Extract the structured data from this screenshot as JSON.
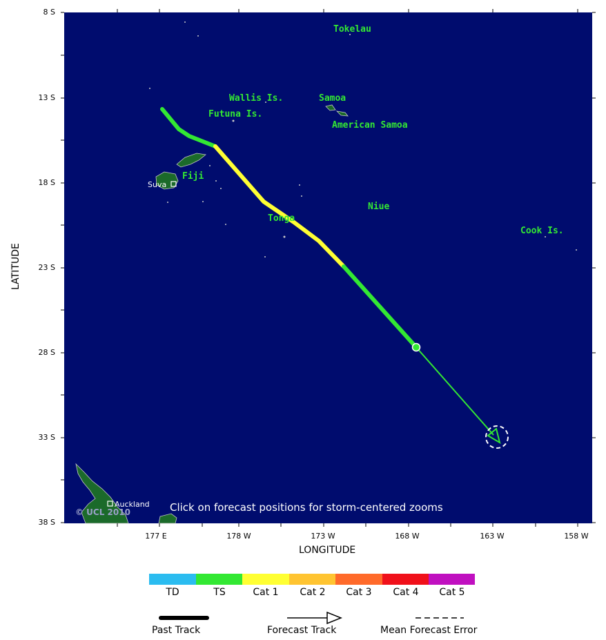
{
  "axes": {
    "y_title": "LATITUDE",
    "x_title": "LONGITUDE",
    "y_ticks": [
      "8 S",
      "13 S",
      "18 S",
      "23 S",
      "28 S",
      "33 S",
      "38 S"
    ],
    "x_ticks": [
      "177 E",
      "178 W",
      "173 W",
      "168 W",
      "163 W",
      "158 W"
    ]
  },
  "map": {
    "background": "#000c6e",
    "land_color": "#1b6a2a",
    "place_names": [
      "Tokelau",
      "Wallis Is.",
      "Futuna Is.",
      "Samoa",
      "American Samoa",
      "Fiji",
      "Niue",
      "Tonga",
      "Cook Is."
    ],
    "cities": [
      "Suva",
      "Auckland"
    ],
    "click_hint": "Click on forecast positions for storm-centered zooms",
    "copyright": "© UCL 2010"
  },
  "track": {
    "past_segments": [
      {
        "category": "TS",
        "color": "#33e833"
      },
      {
        "category": "Cat 1",
        "color": "#ffff33"
      },
      {
        "category": "TS",
        "color": "#33e833"
      }
    ],
    "forecast_color": "#33e833"
  },
  "legend": {
    "categories": [
      {
        "label": "TD",
        "color": "#2bbcf0"
      },
      {
        "label": "TS",
        "color": "#33e833"
      },
      {
        "label": "Cat 1",
        "color": "#ffff33"
      },
      {
        "label": "Cat 2",
        "color": "#ffc431"
      },
      {
        "label": "Cat 3",
        "color": "#ff6a2a"
      },
      {
        "label": "Cat 4",
        "color": "#f0101a"
      },
      {
        "label": "Cat 5",
        "color": "#c010c0"
      }
    ],
    "past_track": "Past Track",
    "forecast_track": "Forecast Track",
    "mean_error": "Mean Forecast Error"
  }
}
